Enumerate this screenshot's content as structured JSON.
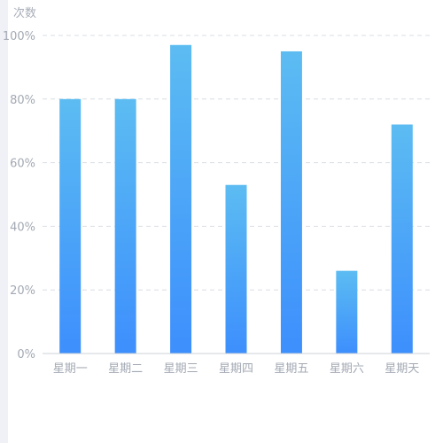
{
  "chart_data": {
    "type": "bar",
    "ylabel": "次数",
    "categories": [
      "星期一",
      "星期二",
      "星期三",
      "星期四",
      "星期五",
      "星期六",
      "星期天"
    ],
    "values": [
      80,
      80,
      97,
      53,
      95,
      26,
      72
    ],
    "ylim": [
      0,
      100
    ],
    "yticks": [
      "0%",
      "20%",
      "40%",
      "60%",
      "80%",
      "100%"
    ],
    "grid": true,
    "colors": {
      "bar_top": "#5cbcf2",
      "bar_bottom": "#3d8ffd",
      "grid": "#d9dde3",
      "axis": "#ccd0d6"
    }
  }
}
